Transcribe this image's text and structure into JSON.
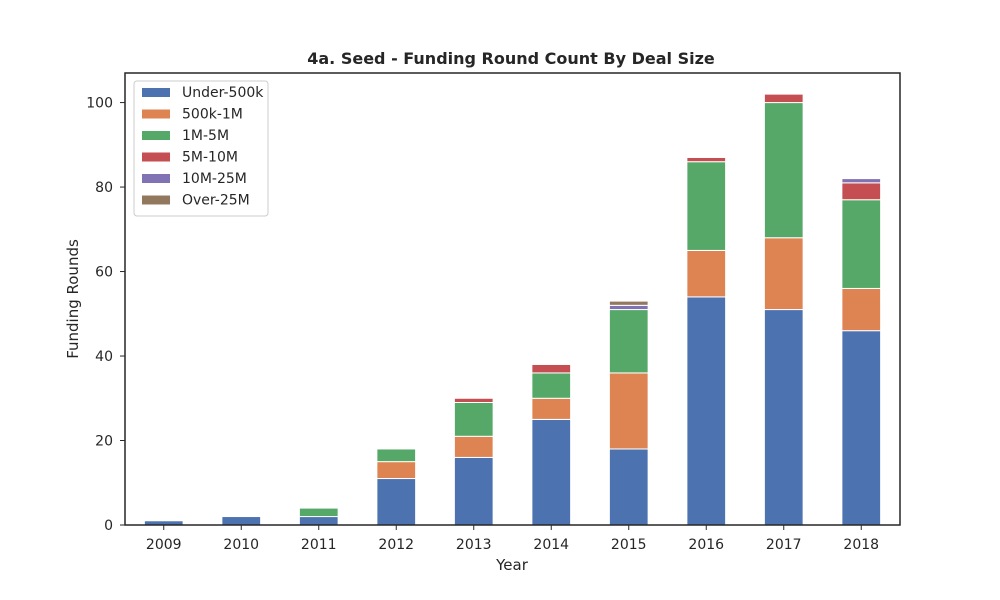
{
  "chart_data": {
    "type": "bar",
    "stacked": true,
    "title": "4a. Seed - Funding Round Count By Deal Size",
    "xlabel": "Year",
    "ylabel": "Funding Rounds",
    "ylim": [
      0,
      107
    ],
    "yticks": [
      0,
      20,
      40,
      60,
      80,
      100
    ],
    "grid": false,
    "legend_position": "top-left",
    "categories": [
      "2009",
      "2010",
      "2011",
      "2012",
      "2013",
      "2014",
      "2015",
      "2016",
      "2017",
      "2018"
    ],
    "series": [
      {
        "name": "Under-500k",
        "color": "#4c72b0",
        "values": [
          1,
          2,
          2,
          11,
          16,
          25,
          18,
          54,
          51,
          46
        ]
      },
      {
        "name": "500k-1M",
        "color": "#dd8452",
        "values": [
          0,
          0,
          0,
          4,
          5,
          5,
          18,
          11,
          17,
          10
        ]
      },
      {
        "name": "1M-5M",
        "color": "#55a868",
        "values": [
          0,
          0,
          2,
          3,
          8,
          6,
          15,
          21,
          32,
          21
        ]
      },
      {
        "name": "5M-10M",
        "color": "#c44e52",
        "values": [
          0,
          0,
          0,
          0,
          1,
          2,
          0,
          1,
          2,
          4
        ]
      },
      {
        "name": "10M-25M",
        "color": "#8172b3",
        "values": [
          0,
          0,
          0,
          0,
          0,
          0,
          1,
          0,
          0,
          1
        ]
      },
      {
        "name": "Over-25M",
        "color": "#937860",
        "values": [
          0,
          0,
          0,
          0,
          0,
          0,
          1,
          0,
          0,
          0
        ]
      }
    ]
  }
}
